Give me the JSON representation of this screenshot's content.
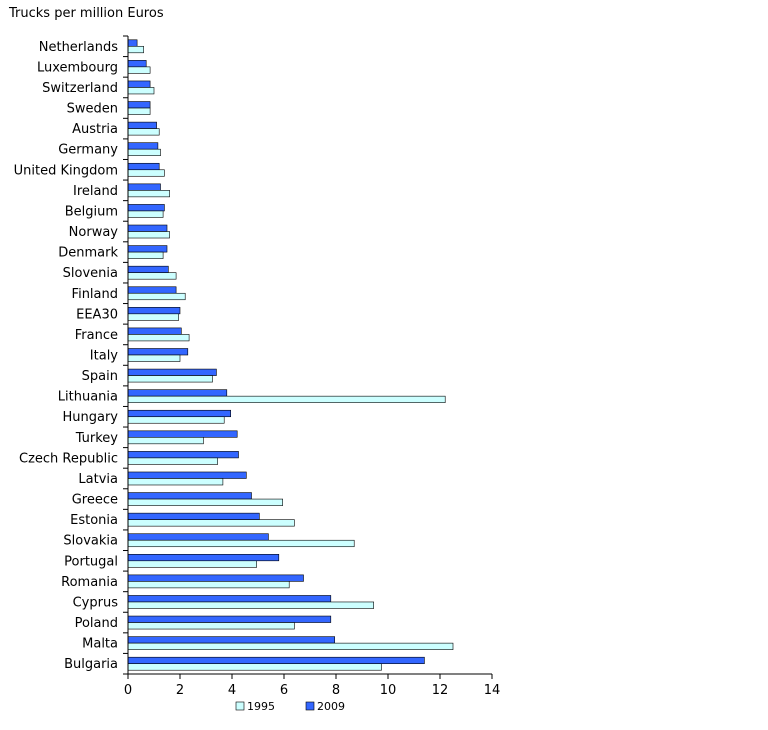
{
  "chart_data": {
    "type": "bar",
    "orientation": "horizontal",
    "unit_label": "Trucks per million Euros",
    "categories": [
      "Netherlands",
      "Luxembourg",
      "Switzerland",
      "Sweden",
      "Austria",
      "Germany",
      "United Kingdom",
      "Ireland",
      "Belgium",
      "Norway",
      "Denmark",
      "Slovenia",
      "Finland",
      "EEA30",
      "France",
      "Italy",
      "Spain",
      "Lithuania",
      "Hungary",
      "Turkey",
      "Czech Republic",
      "Latvia",
      "Greece",
      "Estonia",
      "Slovakia",
      "Portugal",
      "Romania",
      "Cyprus",
      "Poland",
      "Malta",
      "Bulgaria"
    ],
    "series": [
      {
        "name": "1995",
        "color": "#ccffff",
        "values": [
          0.6,
          0.85,
          1.0,
          0.85,
          1.2,
          1.25,
          1.4,
          1.6,
          1.35,
          1.6,
          1.35,
          1.85,
          2.2,
          1.95,
          2.35,
          2.0,
          3.25,
          12.2,
          3.7,
          2.9,
          3.45,
          3.65,
          5.95,
          6.4,
          8.7,
          4.95,
          6.2,
          9.45,
          6.4,
          12.5,
          9.75
        ]
      },
      {
        "name": "2009",
        "color": "#3366ff",
        "values": [
          0.35,
          0.7,
          0.85,
          0.85,
          1.1,
          1.15,
          1.2,
          1.25,
          1.4,
          1.5,
          1.5,
          1.55,
          1.85,
          2.0,
          2.05,
          2.3,
          3.4,
          3.8,
          3.95,
          4.2,
          4.25,
          4.55,
          4.75,
          5.05,
          5.4,
          5.8,
          6.75,
          7.8,
          7.8,
          7.95,
          11.4
        ]
      }
    ],
    "xlim": [
      0,
      14
    ],
    "xticks": [
      0,
      2,
      4,
      6,
      8,
      10,
      12,
      14
    ],
    "grid": false,
    "legend_position": "bottom"
  }
}
